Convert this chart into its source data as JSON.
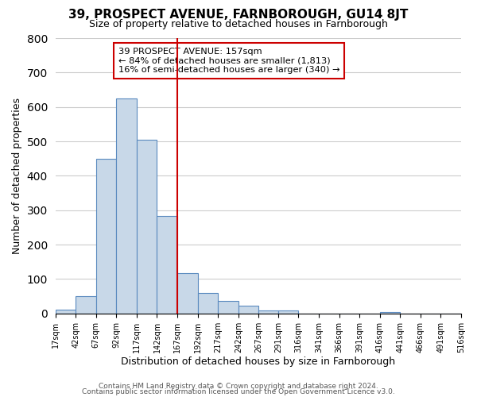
{
  "title": "39, PROSPECT AVENUE, FARNBOROUGH, GU14 8JT",
  "subtitle": "Size of property relative to detached houses in Farnborough",
  "xlabel": "Distribution of detached houses by size in Farnborough",
  "ylabel": "Number of detached properties",
  "bar_edges": [
    17,
    42,
    67,
    92,
    117,
    142,
    167,
    192,
    217,
    242,
    267,
    291,
    316,
    341,
    366,
    391,
    416,
    441,
    466,
    491,
    516
  ],
  "bar_heights": [
    12,
    50,
    450,
    625,
    505,
    283,
    117,
    60,
    37,
    22,
    8,
    8,
    0,
    0,
    0,
    0,
    5,
    0,
    0,
    0
  ],
  "bar_color": "#c8d8e8",
  "bar_edge_color": "#5a8abf",
  "ref_line_x": 167,
  "ref_line_color": "#cc0000",
  "annotation_title": "39 PROSPECT AVENUE: 157sqm",
  "annotation_line1": "← 84% of detached houses are smaller (1,813)",
  "annotation_line2": "16% of semi-detached houses are larger (340) →",
  "ylim": [
    0,
    800
  ],
  "yticks": [
    0,
    100,
    200,
    300,
    400,
    500,
    600,
    700,
    800
  ],
  "tick_labels": [
    "17sqm",
    "42sqm",
    "67sqm",
    "92sqm",
    "117sqm",
    "142sqm",
    "167sqm",
    "192sqm",
    "217sqm",
    "242sqm",
    "267sqm",
    "291sqm",
    "316sqm",
    "341sqm",
    "366sqm",
    "391sqm",
    "416sqm",
    "441sqm",
    "466sqm",
    "491sqm",
    "516sqm"
  ],
  "footer_line1": "Contains HM Land Registry data © Crown copyright and database right 2024.",
  "footer_line2": "Contains public sector information licensed under the Open Government Licence v3.0.",
  "background_color": "#ffffff",
  "grid_color": "#cccccc"
}
